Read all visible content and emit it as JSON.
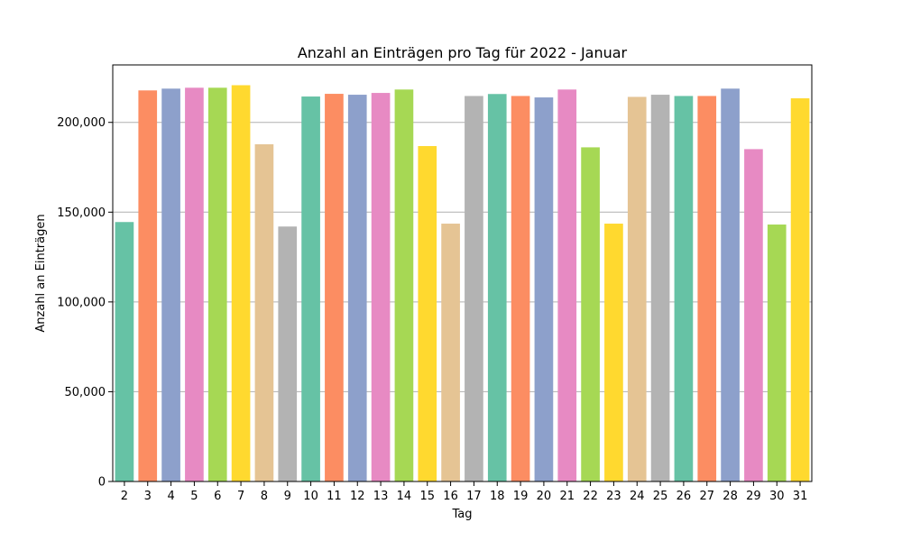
{
  "chart_data": {
    "type": "bar",
    "title": "Anzahl an Einträgen pro Tag für 2022 - Januar",
    "xlabel": "Tag",
    "ylabel": "Anzahl an Einträgen",
    "categories": [
      "2",
      "3",
      "4",
      "5",
      "6",
      "7",
      "8",
      "9",
      "10",
      "11",
      "12",
      "13",
      "14",
      "15",
      "16",
      "17",
      "18",
      "19",
      "20",
      "21",
      "22",
      "23",
      "24",
      "25",
      "26",
      "27",
      "28",
      "29",
      "30",
      "31"
    ],
    "values": [
      144500,
      217800,
      218800,
      219300,
      219300,
      220700,
      187800,
      142000,
      214400,
      215900,
      215400,
      216400,
      218300,
      186800,
      143600,
      214700,
      215800,
      214700,
      213900,
      218300,
      186100,
      143600,
      214200,
      215400,
      214700,
      214700,
      218800,
      185100,
      143100,
      213400
    ],
    "ylim": [
      0,
      232000
    ],
    "yticks": [
      0,
      50000,
      100000,
      150000,
      200000
    ],
    "ytick_labels": [
      "0",
      "50,000",
      "100,000",
      "150,000",
      "200,000"
    ],
    "grid": "y",
    "legend": "none",
    "palette": [
      "#66c2a5",
      "#fc8d62",
      "#8da0cb",
      "#e78ac3",
      "#a6d854",
      "#ffd92f",
      "#e5c494",
      "#b3b3b3"
    ]
  }
}
